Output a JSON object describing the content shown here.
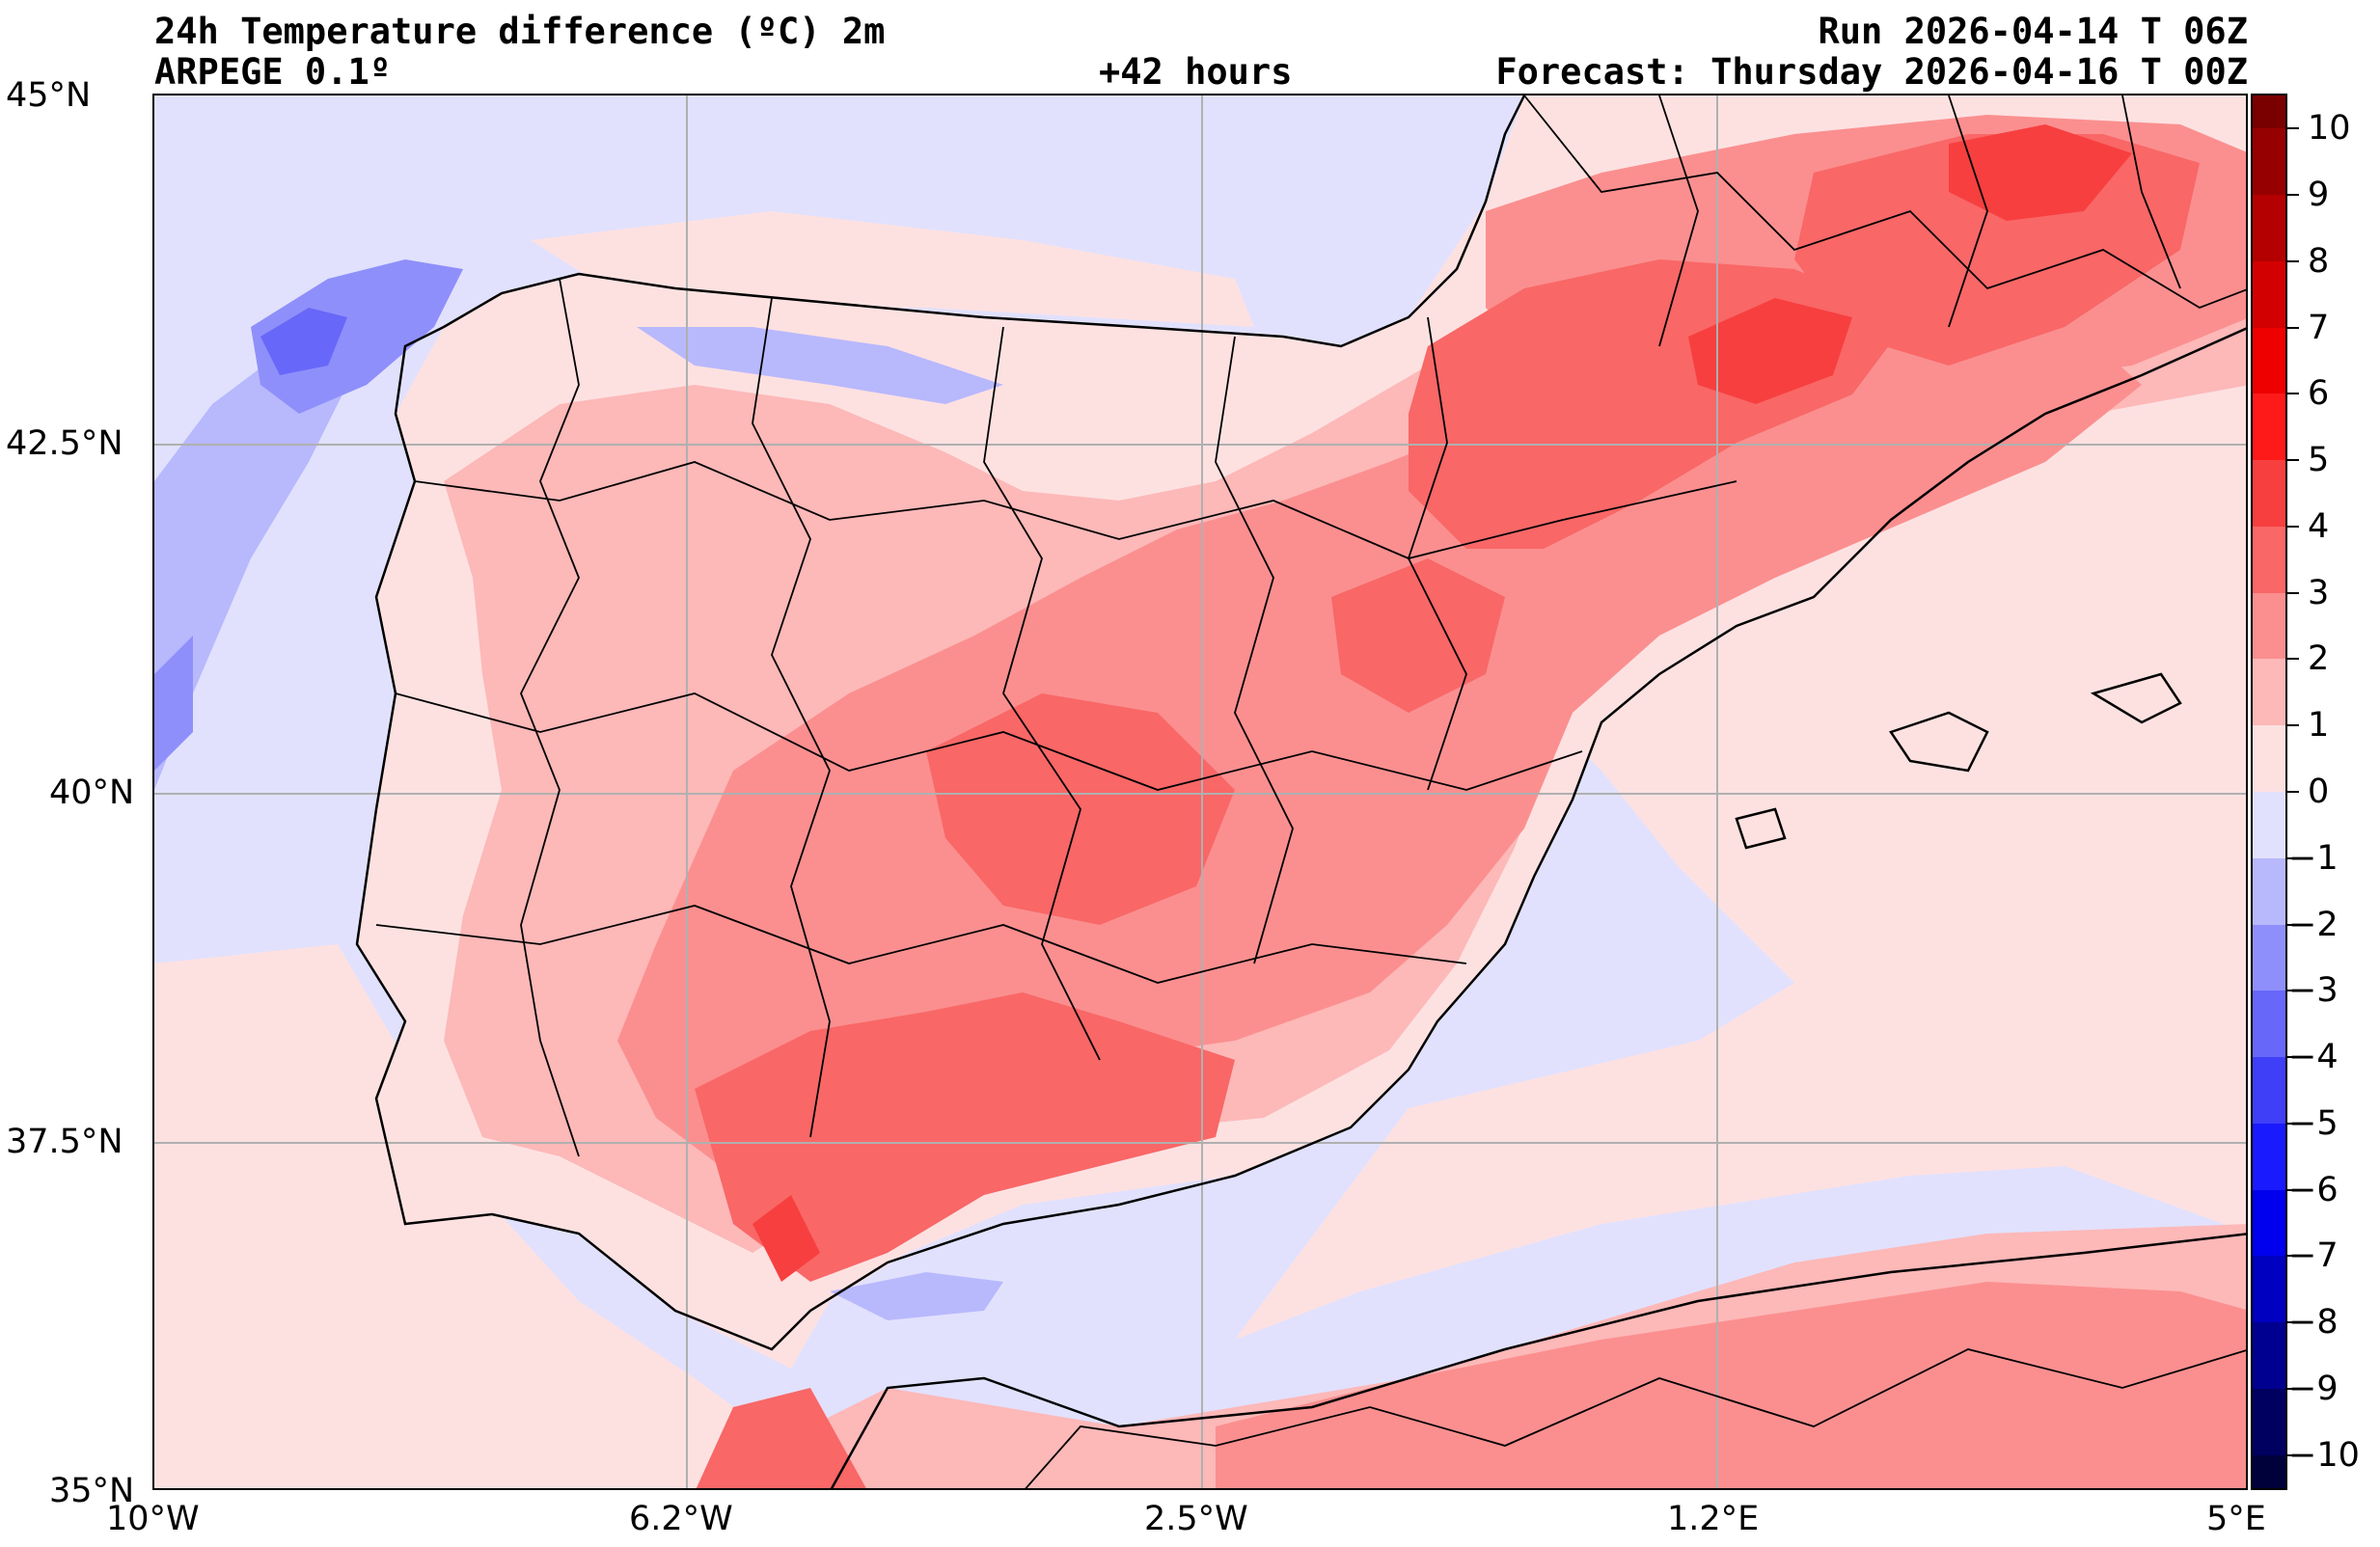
{
  "header": {
    "title_left": "24h Temperature difference (ºC) 2m",
    "model": "ARPEGE 0.1º",
    "lead_time": "+42 hours",
    "run": "Run 2026-04-14 T 06Z",
    "forecast": "Forecast: Thursday 2026-04-16 T 00Z"
  },
  "map": {
    "lat_labels": [
      "45°N",
      "42.5°N",
      "40°N",
      "37.5°N",
      "35°N"
    ],
    "lon_labels": [
      "10°W",
      "6.2°W",
      "2.5°W",
      "1.2°E",
      "5°E"
    ],
    "lat_range": [
      35,
      45
    ],
    "lon_range": [
      -10,
      5
    ],
    "colors": {
      "sea_neutral": "#e1e1fd",
      "pos_0_1": "#fde1e1",
      "pos_1_2": "#fdb8b8",
      "pos_2_3": "#fb8f8f",
      "pos_3_4": "#f96767",
      "pos_4_5": "#f73f3f",
      "neg_1_2": "#b8b8fd",
      "neg_2_3": "#8f8ffb",
      "neg_3_4": "#6767f9"
    }
  },
  "colorbar": {
    "labels": [
      "10",
      "9",
      "8",
      "7",
      "6",
      "5",
      "4",
      "3",
      "2",
      "1",
      "0",
      "−1",
      "−2",
      "−3",
      "−4",
      "−5",
      "−6",
      "−7",
      "−8",
      "−9",
      "−10"
    ],
    "segments": [
      "#7a0000",
      "#970000",
      "#b40000",
      "#d20000",
      "#ee0000",
      "#ff1a1a",
      "#f73f3f",
      "#f96767",
      "#fb8f8f",
      "#fdb8b8",
      "#fde1e1",
      "#e1e1fd",
      "#b8b8fd",
      "#8f8ffb",
      "#6767f9",
      "#3f3ff7",
      "#1a1aff",
      "#0000ee",
      "#0000c0",
      "#000090",
      "#000060",
      "#00003b"
    ]
  }
}
